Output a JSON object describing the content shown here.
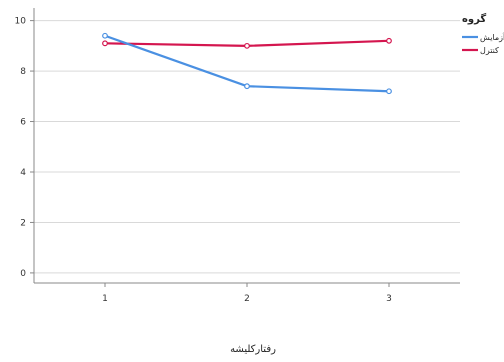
{
  "chart_data": {
    "type": "line",
    "x": [
      1,
      2,
      3
    ],
    "xlabel": "رفتارکلیشه",
    "ylabel": "",
    "ylim": [
      -0.4,
      10.5
    ],
    "yticks": [
      0,
      2,
      4,
      6,
      8,
      10
    ],
    "xticks": [
      "1",
      "2",
      "3"
    ],
    "grid": "horizontal",
    "legend": {
      "title": "گروه",
      "placement": "top-right"
    },
    "series": [
      {
        "name": "آزمایش",
        "values": [
          9.4,
          7.4,
          7.2
        ],
        "color": "#4a90e2"
      },
      {
        "name": "کنترل",
        "values": [
          9.1,
          9.0,
          9.2
        ],
        "color": "#d4164f"
      }
    ]
  }
}
